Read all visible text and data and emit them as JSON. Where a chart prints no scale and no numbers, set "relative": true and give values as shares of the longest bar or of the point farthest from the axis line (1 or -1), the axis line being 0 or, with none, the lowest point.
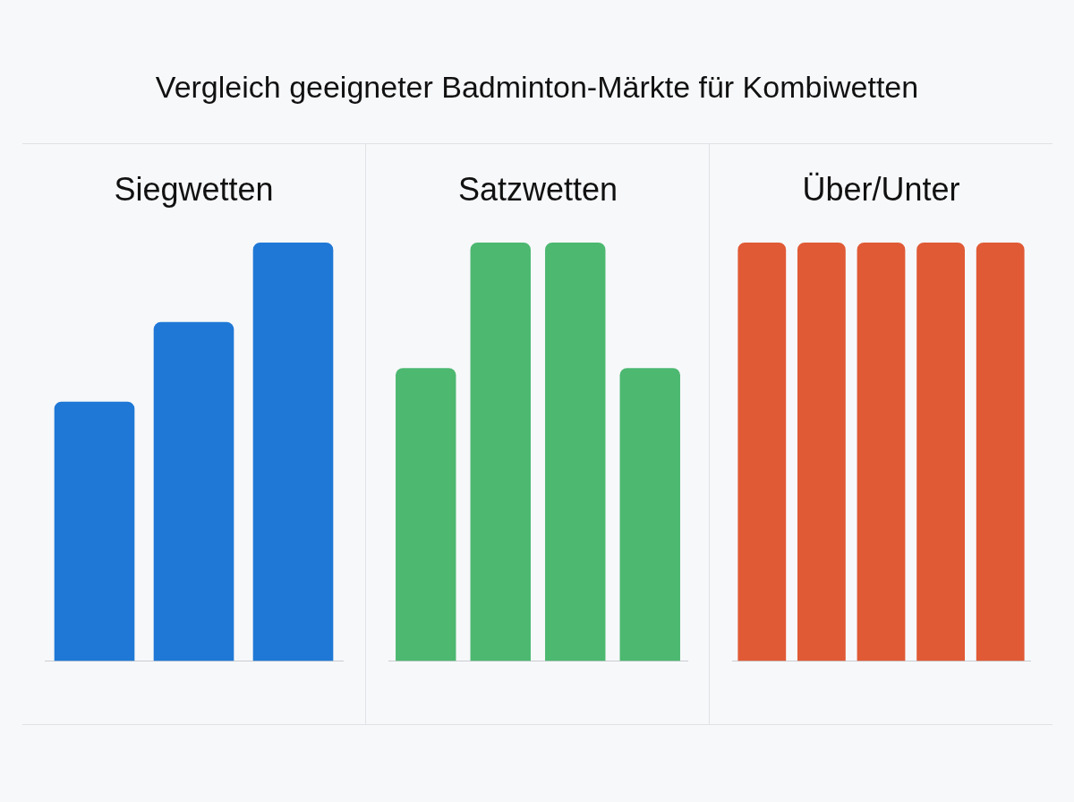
{
  "chart_data": [
    {
      "type": "bar",
      "title": "Vergleich geeigneter Badminton-Märkte für Kombiwetten",
      "subtitle": "Siegwetten",
      "relative": true,
      "categories": [
        null,
        null,
        null
      ],
      "values": [
        0.62,
        0.81,
        1
      ],
      "color": "#1f78d6",
      "grid": false,
      "legend": false
    },
    {
      "type": "bar",
      "subtitle": "Satzwetten",
      "relative": true,
      "categories": [
        null,
        null,
        null,
        null
      ],
      "values": [
        0.7,
        1,
        1,
        0.7
      ],
      "color": "#4cb870",
      "grid": false,
      "legend": false
    },
    {
      "type": "bar",
      "subtitle": "Über/Unter",
      "relative": true,
      "categories": [
        null,
        null,
        null,
        null,
        null
      ],
      "values": [
        1,
        1,
        1,
        1,
        1
      ],
      "color": "#e05a35",
      "grid": false,
      "legend": false
    }
  ]
}
